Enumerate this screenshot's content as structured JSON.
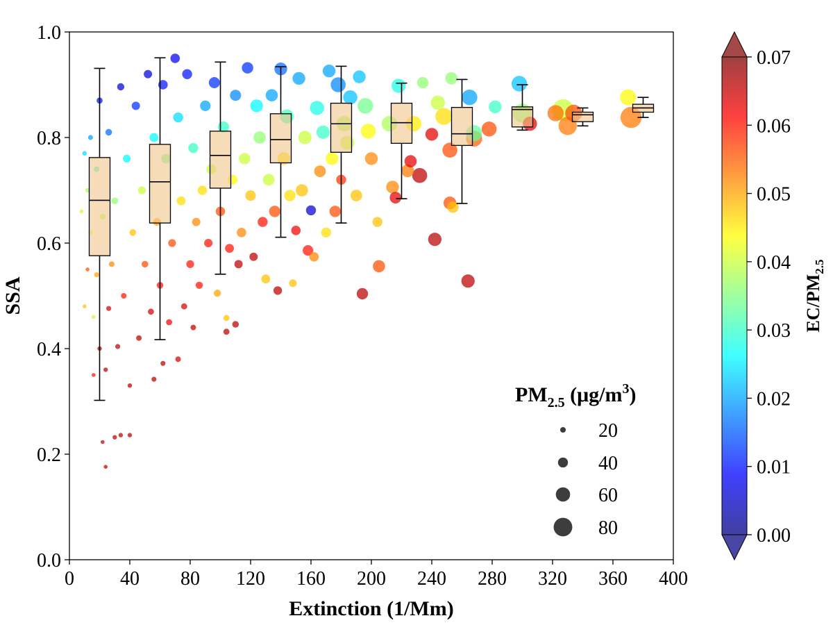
{
  "chart_data": {
    "type": "scatter",
    "xlabel": "Extinction (1/Mm)",
    "ylabel": "SSA",
    "xlim": [
      0,
      400
    ],
    "ylim": [
      0,
      1.0
    ],
    "x_ticks": [
      "0",
      "40",
      "80",
      "120",
      "160",
      "200",
      "240",
      "280",
      "320",
      "360",
      "400"
    ],
    "y_ticks": [
      "0.0",
      "0.2",
      "0.4",
      "0.6",
      "0.8",
      "1.0"
    ],
    "grid": false,
    "colorbar": {
      "label_main": "EC/PM",
      "label_sub": "2.5",
      "range": [
        0.0,
        0.07
      ],
      "ticks": [
        "0.00",
        "0.01",
        "0.02",
        "0.03",
        "0.04",
        "0.05",
        "0.06",
        "0.07"
      ],
      "colormap": "jet",
      "extend": "both",
      "colors": [
        "#00007f",
        "#0000ff",
        "#007fff",
        "#00ffff",
        "#7fff7f",
        "#ffff00",
        "#ff7f00",
        "#ff0000",
        "#7f0000"
      ]
    },
    "size_legend": {
      "title_main": "PM",
      "title_sub": "2.5",
      "title_unit": " (μg/m",
      "title_sup": "3",
      "title_close": ")",
      "placement": "lower-right",
      "entries": [
        {
          "label": "20",
          "value": 20
        },
        {
          "label": "40",
          "value": 40
        },
        {
          "label": "60",
          "value": 60
        },
        {
          "label": "80",
          "value": 80
        }
      ]
    },
    "boxplots": [
      {
        "x": 20,
        "whisker_low": 0.302,
        "q1": 0.576,
        "median": 0.681,
        "q3": 0.762,
        "whisker_high": 0.931
      },
      {
        "x": 60,
        "whisker_low": 0.417,
        "q1": 0.638,
        "median": 0.716,
        "q3": 0.787,
        "whisker_high": 0.951
      },
      {
        "x": 100,
        "whisker_low": 0.541,
        "q1": 0.704,
        "median": 0.766,
        "q3": 0.812,
        "whisker_high": 0.943
      },
      {
        "x": 140,
        "whisker_low": 0.611,
        "q1": 0.752,
        "median": 0.796,
        "q3": 0.845,
        "whisker_high": 0.934
      },
      {
        "x": 180,
        "whisker_low": 0.638,
        "q1": 0.772,
        "median": 0.826,
        "q3": 0.865,
        "whisker_high": 0.935
      },
      {
        "x": 220,
        "whisker_low": 0.684,
        "q1": 0.789,
        "median": 0.828,
        "q3": 0.865,
        "whisker_high": 0.903
      },
      {
        "x": 260,
        "whisker_low": 0.675,
        "q1": 0.785,
        "median": 0.807,
        "q3": 0.857,
        "whisker_high": 0.91
      },
      {
        "x": 300,
        "whisker_low": 0.814,
        "q1": 0.82,
        "median": 0.853,
        "q3": 0.858,
        "whisker_high": 0.9
      },
      {
        "x": 340,
        "whisker_low": 0.822,
        "q1": 0.83,
        "median": 0.843,
        "q3": 0.848,
        "whisker_high": 0.856
      },
      {
        "x": 380,
        "whisker_low": 0.838,
        "q1": 0.848,
        "median": 0.856,
        "q3": 0.863,
        "whisker_high": 0.876
      }
    ],
    "series": [
      {
        "fields": [
          "extinction",
          "ssa",
          "ec_pm25",
          "pm25"
        ],
        "points": [
          [
            370,
            0.876,
            0.044,
            52
          ],
          [
            372,
            0.838,
            0.053,
            70
          ],
          [
            334,
            0.846,
            0.056,
            55
          ],
          [
            327,
            0.852,
            0.04,
            72
          ],
          [
            330,
            0.822,
            0.053,
            60
          ],
          [
            322,
            0.846,
            0.054,
            52
          ],
          [
            305,
            0.826,
            0.063,
            45
          ],
          [
            298,
            0.902,
            0.022,
            50
          ],
          [
            300,
            0.846,
            0.036,
            62
          ],
          [
            282,
            0.858,
            0.03,
            40
          ],
          [
            278,
            0.816,
            0.056,
            48
          ],
          [
            268,
            0.798,
            0.055,
            52
          ],
          [
            265,
            0.876,
            0.02,
            50
          ],
          [
            268,
            0.808,
            0.033,
            52
          ],
          [
            264,
            0.528,
            0.066,
            42
          ],
          [
            253,
            0.912,
            0.036,
            38
          ],
          [
            252,
            0.776,
            0.056,
            48
          ],
          [
            248,
            0.84,
            0.046,
            55
          ],
          [
            254,
            0.668,
            0.048,
            35
          ],
          [
            252,
            0.676,
            0.056,
            40
          ],
          [
            242,
            0.607,
            0.066,
            42
          ],
          [
            240,
            0.806,
            0.063,
            40
          ],
          [
            244,
            0.866,
            0.04,
            45
          ],
          [
            234,
            0.904,
            0.036,
            35
          ],
          [
            232,
            0.728,
            0.066,
            48
          ],
          [
            228,
            0.826,
            0.045,
            50
          ],
          [
            226,
            0.755,
            0.063,
            38
          ],
          [
            224,
            0.737,
            0.053,
            40
          ],
          [
            216,
            0.686,
            0.063,
            36
          ],
          [
            214,
            0.706,
            0.052,
            40
          ],
          [
            212,
            0.826,
            0.038,
            50
          ],
          [
            218,
            0.898,
            0.028,
            45
          ],
          [
            205,
            0.556,
            0.056,
            38
          ],
          [
            204,
            0.64,
            0.048,
            30
          ],
          [
            200,
            0.76,
            0.052,
            40
          ],
          [
            198,
            0.812,
            0.044,
            48
          ],
          [
            196,
            0.86,
            0.034,
            50
          ],
          [
            194,
            0.504,
            0.066,
            35
          ],
          [
            192,
            0.915,
            0.022,
            40
          ],
          [
            190,
            0.69,
            0.048,
            36
          ],
          [
            186,
            0.876,
            0.022,
            45
          ],
          [
            184,
            0.79,
            0.04,
            45
          ],
          [
            182,
            0.826,
            0.038,
            50
          ],
          [
            180,
            0.72,
            0.058,
            30
          ],
          [
            178,
            0.9,
            0.018,
            48
          ],
          [
            176,
            0.66,
            0.056,
            35
          ],
          [
            174,
            0.76,
            0.044,
            40
          ],
          [
            172,
            0.926,
            0.02,
            40
          ],
          [
            170,
            0.62,
            0.046,
            30
          ],
          [
            168,
            0.81,
            0.03,
            42
          ],
          [
            166,
            0.736,
            0.052,
            36
          ],
          [
            164,
            0.856,
            0.028,
            45
          ],
          [
            162,
            0.574,
            0.052,
            28
          ],
          [
            160,
            0.662,
            0.006,
            30
          ],
          [
            158,
            0.586,
            0.06,
            32
          ],
          [
            156,
            0.8,
            0.04,
            42
          ],
          [
            154,
            0.7,
            0.048,
            38
          ],
          [
            152,
            0.912,
            0.02,
            40
          ],
          [
            150,
            0.624,
            0.062,
            28
          ],
          [
            148,
            0.524,
            0.048,
            22
          ],
          [
            146,
            0.69,
            0.046,
            35
          ],
          [
            144,
            0.84,
            0.03,
            44
          ],
          [
            142,
            0.76,
            0.046,
            40
          ],
          [
            140,
            0.93,
            0.016,
            40
          ],
          [
            138,
            0.51,
            0.066,
            25
          ],
          [
            136,
            0.66,
            0.056,
            35
          ],
          [
            134,
            0.88,
            0.02,
            38
          ],
          [
            132,
            0.72,
            0.04,
            36
          ],
          [
            130,
            0.532,
            0.048,
            26
          ],
          [
            128,
            0.64,
            0.06,
            30
          ],
          [
            126,
            0.8,
            0.036,
            38
          ],
          [
            124,
            0.86,
            0.026,
            40
          ],
          [
            122,
            0.574,
            0.066,
            24
          ],
          [
            120,
            0.69,
            0.048,
            32
          ],
          [
            118,
            0.932,
            0.012,
            35
          ],
          [
            116,
            0.76,
            0.04,
            35
          ],
          [
            114,
            0.62,
            0.052,
            28
          ],
          [
            112,
            0.56,
            0.066,
            24
          ],
          [
            110,
            0.446,
            0.066,
            18
          ],
          [
            110,
            0.88,
            0.018,
            34
          ],
          [
            108,
            0.72,
            0.044,
            30
          ],
          [
            106,
            0.59,
            0.06,
            26
          ],
          [
            104,
            0.432,
            0.066,
            16
          ],
          [
            104,
            0.458,
            0.048,
            16
          ],
          [
            102,
            0.82,
            0.03,
            34
          ],
          [
            100,
            0.66,
            0.056,
            28
          ],
          [
            98,
            0.505,
            0.05,
            20
          ],
          [
            96,
            0.904,
            0.012,
            34
          ],
          [
            94,
            0.74,
            0.04,
            30
          ],
          [
            92,
            0.6,
            0.06,
            24
          ],
          [
            90,
            0.86,
            0.02,
            32
          ],
          [
            88,
            0.7,
            0.046,
            28
          ],
          [
            86,
            0.52,
            0.06,
            20
          ],
          [
            84,
            0.64,
            0.052,
            24
          ],
          [
            82,
            0.44,
            0.066,
            14
          ],
          [
            82,
            0.78,
            0.03,
            30
          ],
          [
            80,
            0.56,
            0.06,
            22
          ],
          [
            78,
            0.92,
            0.01,
            30
          ],
          [
            76,
            0.48,
            0.064,
            16
          ],
          [
            74,
            0.68,
            0.046,
            26
          ],
          [
            72,
            0.38,
            0.064,
            14
          ],
          [
            72,
            0.838,
            0.024,
            30
          ],
          [
            70,
            0.95,
            0.008,
            28
          ],
          [
            68,
            0.6,
            0.056,
            22
          ],
          [
            66,
            0.45,
            0.062,
            16
          ],
          [
            64,
            0.76,
            0.034,
            28
          ],
          [
            62,
            0.372,
            0.066,
            12
          ],
          [
            62,
            0.9,
            0.01,
            28
          ],
          [
            60,
            0.52,
            0.06,
            18
          ],
          [
            58,
            0.64,
            0.05,
            22
          ],
          [
            56,
            0.342,
            0.066,
            12
          ],
          [
            56,
            0.8,
            0.026,
            26
          ],
          [
            54,
            0.47,
            0.064,
            16
          ],
          [
            52,
            0.92,
            0.006,
            24
          ],
          [
            50,
            0.56,
            0.056,
            18
          ],
          [
            48,
            0.7,
            0.04,
            22
          ],
          [
            46,
            0.42,
            0.066,
            14
          ],
          [
            44,
            0.86,
            0.012,
            24
          ],
          [
            42,
            0.62,
            0.048,
            18
          ],
          [
            40,
            0.236,
            0.066,
            10
          ],
          [
            40,
            0.33,
            0.066,
            10
          ],
          [
            38,
            0.76,
            0.026,
            22
          ],
          [
            36,
            0.5,
            0.06,
            14
          ],
          [
            34,
            0.236,
            0.066,
            10
          ],
          [
            34,
            0.896,
            0.006,
            20
          ],
          [
            32,
            0.404,
            0.066,
            12
          ],
          [
            30,
            0.68,
            0.036,
            18
          ],
          [
            30,
            0.232,
            0.066,
            10
          ],
          [
            28,
            0.56,
            0.052,
            14
          ],
          [
            26,
            0.81,
            0.016,
            18
          ],
          [
            26,
            0.476,
            0.064,
            12
          ],
          [
            24,
            0.176,
            0.066,
            8
          ],
          [
            24,
            0.36,
            0.066,
            10
          ],
          [
            22,
            0.223,
            0.066,
            8
          ],
          [
            22,
            0.65,
            0.04,
            14
          ],
          [
            20,
            0.87,
            0.01,
            16
          ],
          [
            20,
            0.4,
            0.066,
            10
          ],
          [
            18,
            0.54,
            0.05,
            12
          ],
          [
            18,
            0.74,
            0.03,
            14
          ],
          [
            16,
            0.35,
            0.06,
            8
          ],
          [
            16,
            0.46,
            0.04,
            8
          ],
          [
            14,
            0.62,
            0.044,
            10
          ],
          [
            14,
            0.8,
            0.02,
            12
          ],
          [
            12,
            0.7,
            0.038,
            10
          ],
          [
            12,
            0.55,
            0.056,
            8
          ],
          [
            10,
            0.77,
            0.024,
            10
          ],
          [
            10,
            0.48,
            0.048,
            8
          ],
          [
            8,
            0.66,
            0.04,
            8
          ]
        ]
      }
    ]
  }
}
